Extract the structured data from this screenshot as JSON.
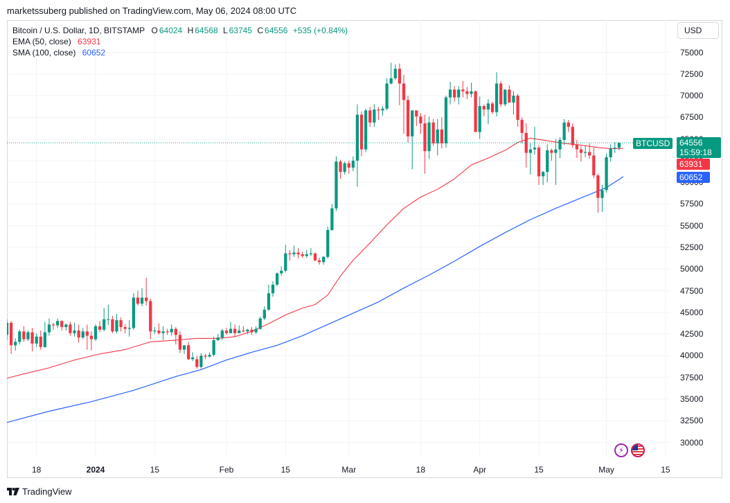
{
  "header": {
    "publisher_line": "marketssuberg published on TradingView.com, May 06, 2024 08:00 UTC"
  },
  "legend": {
    "symbol": "Bitcoin / U.S. Dollar, 1D, BITSTAMP",
    "o_label": "O",
    "o_value": "64024",
    "h_label": "H",
    "h_value": "64568",
    "l_label": "L",
    "l_value": "63745",
    "c_label": "C",
    "c_value": "64556",
    "change": "+535 (+0.84%)",
    "ema_label": "EMA (50, close)",
    "ema_value": "63931",
    "sma_label": "SMA (100, close)",
    "sma_value": "60652"
  },
  "currency_button": "USD",
  "price_tags": {
    "symbol": "BTCUSD",
    "last": "64556",
    "countdown": "15:59:18",
    "ema": "63931",
    "sma": "60652"
  },
  "colors": {
    "up": "#089981",
    "down": "#f23645",
    "ema": "#f23645",
    "sma": "#2962ff",
    "grid": "#f0f3fa"
  },
  "event_badge": "⚡",
  "footer": {
    "brand": "TradingView"
  },
  "chart_data": {
    "type": "candlestick",
    "title": "Bitcoin / U.S. Dollar, 1D, BITSTAMP",
    "y_ticks": [
      30000,
      32500,
      35000,
      37500,
      40000,
      42500,
      45000,
      47500,
      50000,
      52500,
      55000,
      57500,
      60000,
      62500,
      65000,
      67500,
      70000,
      72500,
      75000
    ],
    "y_tick_labels": [
      "30000",
      "32500",
      "35000",
      "37500",
      "40000",
      "42500",
      "45000",
      "47500",
      "50000",
      "52500",
      "55000",
      "57500",
      "60000",
      "62500",
      "65000",
      "67500",
      "70000",
      "72500",
      "75000"
    ],
    "ylim": [
      28000,
      76500
    ],
    "x_ticks": [
      {
        "label": "18",
        "day": 17
      },
      {
        "label": "2024",
        "day": 31,
        "bold": true
      },
      {
        "label": "15",
        "day": 45
      },
      {
        "label": "Feb",
        "day": 62
      },
      {
        "label": "15",
        "day": 76
      },
      {
        "label": "Mar",
        "day": 91
      },
      {
        "label": "18",
        "day": 108
      },
      {
        "label": "Apr",
        "day": 122
      },
      {
        "label": "15",
        "day": 136
      },
      {
        "label": "May",
        "day": 152
      },
      {
        "label": "15",
        "day": 166
      }
    ],
    "x_range_days": [
      10,
      167
    ],
    "first_candle_date": "2023-12-10",
    "x_note": "day index: 1 = 2023-12-01",
    "candles": [
      [
        42400,
        44200,
        41800,
        43800
      ],
      [
        43800,
        44000,
        40200,
        41200
      ],
      [
        41200,
        42000,
        40600,
        41600
      ],
      [
        41600,
        43000,
        41300,
        42800
      ],
      [
        42800,
        43400,
        41600,
        41900
      ],
      [
        41900,
        42900,
        41700,
        42700
      ],
      [
        42700,
        43200,
        40500,
        41400
      ],
      [
        41400,
        42600,
        41000,
        42200
      ],
      [
        42200,
        42900,
        40700,
        41000
      ],
      [
        41000,
        43900,
        40900,
        42700
      ],
      [
        42700,
        44300,
        42300,
        43600
      ],
      [
        43600,
        43800,
        43000,
        43500
      ],
      [
        43500,
        44300,
        43200,
        44000
      ],
      [
        44000,
        44100,
        42900,
        43300
      ],
      [
        43300,
        43700,
        42900,
        43600
      ],
      [
        43600,
        43900,
        42300,
        42600
      ],
      [
        42600,
        43800,
        42200,
        42900
      ],
      [
        42900,
        43600,
        41500,
        42100
      ],
      [
        42100,
        43200,
        41900,
        42800
      ],
      [
        42800,
        43600,
        40700,
        42300
      ],
      [
        42300,
        42800,
        40600,
        41900
      ],
      [
        41900,
        43600,
        41700,
        43400
      ],
      [
        43400,
        44000,
        42700,
        43000
      ],
      [
        43000,
        45500,
        42800,
        44200
      ],
      [
        44200,
        45900,
        43500,
        44200
      ],
      [
        44200,
        44600,
        42600,
        42800
      ],
      [
        42800,
        44800,
        42600,
        44100
      ],
      [
        44100,
        44400,
        42800,
        43300
      ],
      [
        43300,
        43600,
        42600,
        43100
      ],
      [
        43100,
        44100,
        42200,
        43200
      ],
      [
        43200,
        47200,
        43000,
        46700
      ],
      [
        46700,
        47500,
        45800,
        46000
      ],
      [
        46000,
        47800,
        45700,
        46700
      ],
      [
        46700,
        49000,
        45800,
        46300
      ],
      [
        46300,
        46600,
        41900,
        42800
      ],
      [
        42800,
        43300,
        42500,
        42900
      ],
      [
        42900,
        43700,
        42400,
        42600
      ],
      [
        42600,
        43400,
        41800,
        42800
      ],
      [
        42800,
        43100,
        42400,
        42700
      ],
      [
        42700,
        43600,
        42300,
        43100
      ],
      [
        43100,
        43300,
        41300,
        42400
      ],
      [
        42400,
        42800,
        40300,
        40700
      ],
      [
        40700,
        41200,
        40200,
        41200
      ],
      [
        41200,
        41600,
        39500,
        39600
      ],
      [
        39600,
        40400,
        39400,
        39800
      ],
      [
        39600,
        40000,
        38500,
        38700
      ],
      [
        38700,
        40300,
        38500,
        40000
      ],
      [
        40000,
        40200,
        39600,
        39900
      ],
      [
        39900,
        40400,
        39800,
        40100
      ],
      [
        40100,
        42200,
        39900,
        41800
      ],
      [
        41800,
        42500,
        41700,
        42100
      ],
      [
        42100,
        43100,
        41800,
        42900
      ],
      [
        42900,
        43200,
        42400,
        42600
      ],
      [
        42600,
        43900,
        42600,
        43100
      ],
      [
        43100,
        43600,
        42200,
        42600
      ],
      [
        42600,
        43500,
        42600,
        42900
      ],
      [
        42900,
        43400,
        42700,
        42800
      ],
      [
        42800,
        43100,
        42500,
        43000
      ],
      [
        43000,
        43300,
        42400,
        42700
      ],
      [
        42700,
        43400,
        42500,
        43100
      ],
      [
        43100,
        44500,
        43000,
        44300
      ],
      [
        44300,
        45700,
        44100,
        45300
      ],
      [
        45300,
        48200,
        45200,
        47200
      ],
      [
        47200,
        48600,
        46800,
        48200
      ],
      [
        48200,
        49600,
        48000,
        49500
      ],
      [
        49500,
        50300,
        49200,
        49800
      ],
      [
        49800,
        52800,
        49600,
        51800
      ],
      [
        51800,
        52200,
        51000,
        51700
      ],
      [
        51700,
        52700,
        51400,
        51900
      ],
      [
        51900,
        52400,
        51200,
        51700
      ],
      [
        51700,
        52000,
        51300,
        51500
      ],
      [
        51500,
        52200,
        51300,
        51700
      ],
      [
        51700,
        52400,
        51500,
        51800
      ],
      [
        51800,
        51900,
        50900,
        51000
      ],
      [
        51000,
        51300,
        50500,
        50800
      ],
      [
        50800,
        51500,
        50500,
        51400
      ],
      [
        51400,
        54900,
        51200,
        54500
      ],
      [
        54500,
        57500,
        54400,
        57000
      ],
      [
        57000,
        63000,
        56700,
        62400
      ],
      [
        62400,
        62600,
        60400,
        61200
      ],
      [
        61200,
        62400,
        60900,
        62200
      ],
      [
        62200,
        62500,
        61000,
        61700
      ],
      [
        61700,
        63000,
        61300,
        62500
      ],
      [
        62500,
        69000,
        59500,
        67800
      ],
      [
        67800,
        68200,
        63000,
        63800
      ],
      [
        63800,
        68500,
        63500,
        68300
      ],
      [
        68300,
        68700,
        66400,
        66900
      ],
      [
        66900,
        69000,
        66400,
        68400
      ],
      [
        68400,
        68700,
        67200,
        68300
      ],
      [
        68300,
        68800,
        67700,
        68500
      ],
      [
        68500,
        72000,
        68300,
        71400
      ],
      [
        71400,
        73800,
        71300,
        72000
      ],
      [
        72000,
        73600,
        71800,
        73100
      ],
      [
        73100,
        73700,
        68900,
        71400
      ],
      [
        71400,
        72400,
        65600,
        69500
      ],
      [
        69500,
        70000,
        64600,
        65300
      ],
      [
        65300,
        68200,
        61500,
        68300
      ],
      [
        68300,
        68200,
        66500,
        67600
      ],
      [
        67600,
        68000,
        65600,
        66800
      ],
      [
        66800,
        67800,
        61000,
        63600
      ],
      [
        63600,
        67600,
        62700,
        66900
      ],
      [
        66900,
        67300,
        64200,
        64500
      ],
      [
        64500,
        67300,
        63100,
        66100
      ],
      [
        66100,
        67500,
        63900,
        64500
      ],
      [
        64500,
        70000,
        64000,
        69800
      ],
      [
        69800,
        71600,
        69000,
        70700
      ],
      [
        70700,
        71100,
        69300,
        69800
      ],
      [
        69800,
        71100,
        69000,
        70700
      ],
      [
        70700,
        71700,
        69800,
        70500
      ],
      [
        70500,
        71000,
        69600,
        70200
      ],
      [
        70200,
        71500,
        69800,
        70500
      ],
      [
        70500,
        70600,
        65900,
        65800
      ],
      [
        65800,
        69900,
        65000,
        68800
      ],
      [
        68800,
        69000,
        67600,
        68400
      ],
      [
        68400,
        69600,
        66700,
        69100
      ],
      [
        69100,
        69300,
        67900,
        68100
      ],
      [
        68100,
        72700,
        67600,
        71400
      ],
      [
        71400,
        71700,
        68700,
        69000
      ],
      [
        69000,
        70700,
        68800,
        70700
      ],
      [
        70700,
        71200,
        69300,
        69200
      ],
      [
        69200,
        70500,
        67800,
        70000
      ],
      [
        70000,
        70200,
        66400,
        67200
      ],
      [
        67200,
        67500,
        64500,
        65700
      ],
      [
        65700,
        66800,
        61700,
        63400
      ],
      [
        63400,
        64500,
        60900,
        63800
      ],
      [
        63800,
        66400,
        63200,
        64000
      ],
      [
        64000,
        64300,
        59700,
        60700
      ],
      [
        60700,
        61300,
        59700,
        61200
      ],
      [
        61200,
        64400,
        60000,
        63700
      ],
      [
        63700,
        63900,
        62500,
        63400
      ],
      [
        63400,
        65000,
        59700,
        63800
      ],
      [
        63800,
        65200,
        62800,
        64900
      ],
      [
        64900,
        67300,
        64300,
        66900
      ],
      [
        66900,
        67200,
        65800,
        66400
      ],
      [
        66400,
        66800,
        64000,
        64300
      ],
      [
        64300,
        64900,
        62800,
        63800
      ],
      [
        63800,
        64200,
        62400,
        63400
      ],
      [
        63400,
        64200,
        62900,
        63500
      ],
      [
        63500,
        64500,
        62700,
        63100
      ],
      [
        63100,
        64000,
        60500,
        60800
      ],
      [
        60800,
        61000,
        56500,
        58200
      ],
      [
        58200,
        59700,
        56600,
        59100
      ],
      [
        59100,
        63300,
        58800,
        62900
      ],
      [
        62900,
        64400,
        62400,
        63900
      ],
      [
        63900,
        64600,
        63400,
        64000
      ],
      [
        64000,
        64600,
        63700,
        64556
      ]
    ],
    "ema_50": [
      [
        10,
        37400
      ],
      [
        14,
        37900
      ],
      [
        20,
        38600
      ],
      [
        26,
        39500
      ],
      [
        32,
        40200
      ],
      [
        38,
        40700
      ],
      [
        44,
        41600
      ],
      [
        50,
        41800
      ],
      [
        55,
        42000
      ],
      [
        60,
        42000
      ],
      [
        64,
        42200
      ],
      [
        68,
        42800
      ],
      [
        72,
        43700
      ],
      [
        76,
        44700
      ],
      [
        80,
        45500
      ],
      [
        83,
        45900
      ],
      [
        86,
        47000
      ],
      [
        89,
        49200
      ],
      [
        92,
        51000
      ],
      [
        96,
        53000
      ],
      [
        100,
        55100
      ],
      [
        104,
        57000
      ],
      [
        108,
        58300
      ],
      [
        112,
        59200
      ],
      [
        116,
        60400
      ],
      [
        120,
        62000
      ],
      [
        124,
        62800
      ],
      [
        128,
        63700
      ],
      [
        131,
        64600
      ],
      [
        134,
        65100
      ],
      [
        138,
        64800
      ],
      [
        142,
        64500
      ],
      [
        146,
        64300
      ],
      [
        150,
        64000
      ],
      [
        153,
        63900
      ],
      [
        155,
        63900
      ],
      [
        156,
        63931
      ]
    ],
    "sma_100": [
      [
        10,
        32300
      ],
      [
        20,
        33600
      ],
      [
        30,
        34700
      ],
      [
        40,
        36000
      ],
      [
        50,
        37600
      ],
      [
        56,
        38400
      ],
      [
        62,
        39500
      ],
      [
        68,
        40400
      ],
      [
        74,
        41200
      ],
      [
        80,
        42300
      ],
      [
        86,
        43600
      ],
      [
        92,
        44900
      ],
      [
        98,
        46200
      ],
      [
        104,
        47800
      ],
      [
        110,
        49300
      ],
      [
        116,
        50900
      ],
      [
        122,
        52600
      ],
      [
        128,
        54200
      ],
      [
        134,
        55700
      ],
      [
        140,
        57000
      ],
      [
        146,
        58200
      ],
      [
        152,
        59400
      ],
      [
        156,
        60652
      ]
    ],
    "last_price": 64556,
    "ema_last": 63931,
    "sma_last": 60652
  }
}
